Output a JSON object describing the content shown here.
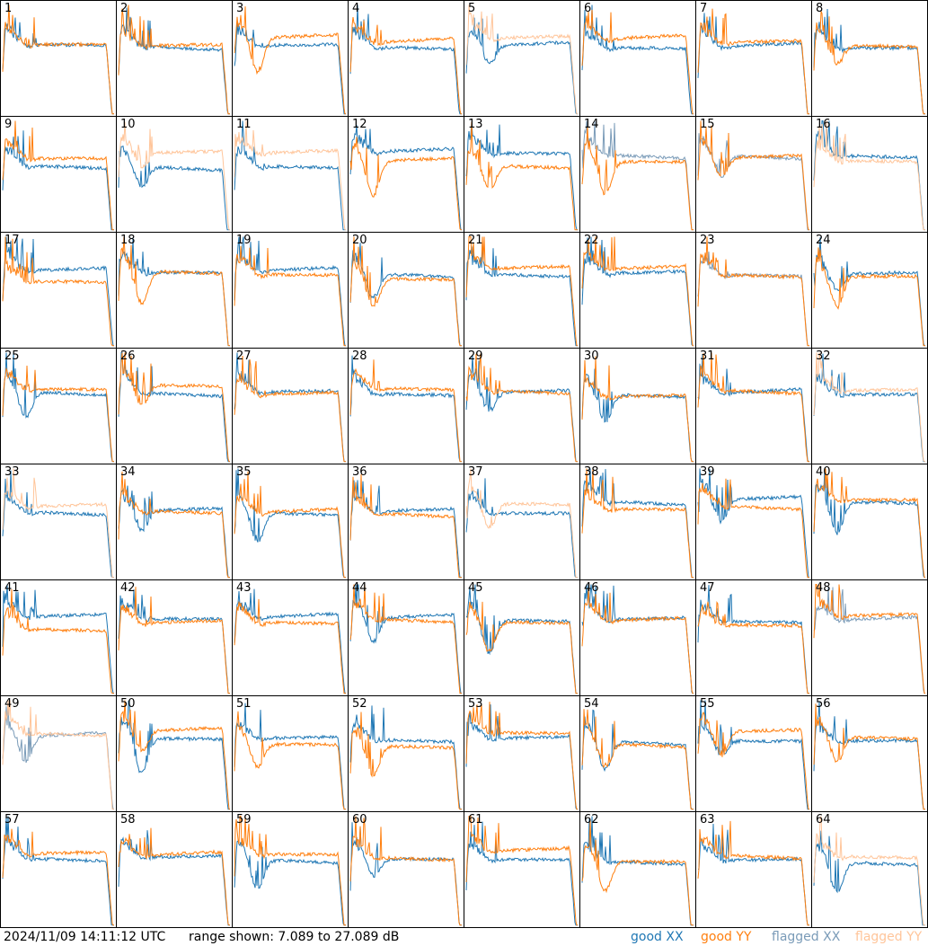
{
  "chart_data": {
    "type": "line",
    "title": "",
    "xlabel": "",
    "ylabel": "",
    "ylim": [
      7.089,
      27.089
    ],
    "panels": [
      "1",
      "2",
      "3",
      "4",
      "5",
      "6",
      "7",
      "8",
      "9",
      "10",
      "11",
      "12",
      "13",
      "14",
      "15",
      "16",
      "17",
      "18",
      "19",
      "20",
      "21",
      "22",
      "23",
      "24",
      "25",
      "26",
      "27",
      "28",
      "29",
      "30",
      "31",
      "32",
      "33",
      "34",
      "35",
      "36",
      "37",
      "38",
      "39",
      "40",
      "41",
      "42",
      "43",
      "44",
      "45",
      "46",
      "47",
      "48",
      "49",
      "50",
      "51",
      "52",
      "53",
      "54",
      "55",
      "56",
      "57",
      "58",
      "59",
      "60",
      "61",
      "62",
      "63",
      "64"
    ],
    "series": [
      {
        "name": "good XX",
        "color": "#1f77b4"
      },
      {
        "name": "good YY",
        "color": "#ff7f0e"
      },
      {
        "name": "flagged XX",
        "color": "#7a9bb8"
      },
      {
        "name": "flagged YY",
        "color": "#ffc59a"
      }
    ],
    "flagged_xx_panels": [
      "14",
      "15",
      "23",
      "48",
      "49"
    ],
    "flagged_yy_panels": [
      "5",
      "10",
      "11",
      "16",
      "32",
      "33",
      "37",
      "49",
      "64"
    ]
  },
  "footer": {
    "timestamp": "2024/11/09 14:11:12 UTC",
    "range_text": "range shown: 7.089 to 27.089 dB"
  },
  "legend": {
    "good_xx": "good XX",
    "good_yy": "good YY",
    "flagged_xx": "flagged XX",
    "flagged_yy": "flagged YY"
  }
}
